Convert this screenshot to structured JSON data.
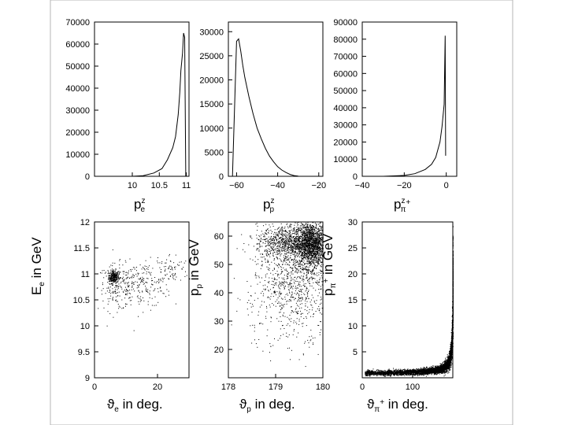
{
  "chart_data": [
    {
      "type": "line",
      "panel": "top-left",
      "xlabel": "p^z_e",
      "xlabel_main": "p",
      "xlabel_sup": "z",
      "xlabel_sub": "e",
      "ylabel": "",
      "xlim": [
        9.3,
        11.05
      ],
      "ylim": [
        0,
        70000
      ],
      "xticks": [
        10,
        10.5,
        11
      ],
      "xtick_labels": [
        "10",
        "10.5",
        "11"
      ],
      "yticks": [
        0,
        10000,
        20000,
        30000,
        40000,
        50000,
        60000,
        70000
      ],
      "ytick_labels": [
        "0",
        "10000",
        "20000",
        "30000",
        "40000",
        "50000",
        "60000",
        "70000"
      ],
      "x": [
        10.0,
        10.2,
        10.4,
        10.55,
        10.65,
        10.75,
        10.8,
        10.85,
        10.88,
        10.9,
        10.93,
        10.95,
        10.97,
        10.99
      ],
      "y": [
        0,
        300,
        1500,
        3500,
        7500,
        13000,
        18000,
        28000,
        38000,
        48000,
        56000,
        65000,
        63000,
        0
      ]
    },
    {
      "type": "line",
      "panel": "top-middle",
      "xlabel": "p^z_p",
      "xlabel_main": "p",
      "xlabel_sup": "z",
      "xlabel_sub": "p",
      "ylabel": "",
      "xlim": [
        -64,
        -18
      ],
      "ylim": [
        0,
        32000
      ],
      "xticks": [
        -60,
        -40,
        -20
      ],
      "xtick_labels": [
        "−60",
        "−40",
        "−20"
      ],
      "yticks": [
        0,
        5000,
        10000,
        15000,
        20000,
        25000,
        30000
      ],
      "ytick_labels": [
        "0",
        "5000",
        "10000",
        "15000",
        "20000",
        "25000",
        "30000"
      ],
      "x": [
        -62,
        -61,
        -60,
        -59,
        -58,
        -57,
        -56,
        -54,
        -52,
        -50,
        -48,
        -46,
        -44,
        -42,
        -40,
        -38,
        -36,
        -34,
        -32,
        -30
      ],
      "y": [
        0,
        14000,
        28000,
        28500,
        26000,
        23000,
        20500,
        16500,
        13000,
        10000,
        7800,
        5800,
        4200,
        3000,
        2000,
        1300,
        800,
        400,
        150,
        50
      ]
    },
    {
      "type": "line",
      "panel": "top-right",
      "xlabel": "p^z_π+",
      "xlabel_main": "p",
      "xlabel_sup": "z",
      "xlabel_sub": "π",
      "xlabel_subsup": "+",
      "ylabel": "",
      "xlim": [
        -40,
        5
      ],
      "ylim": [
        0,
        90000
      ],
      "xticks": [
        -40,
        -20,
        0
      ],
      "xtick_labels": [
        "−40",
        "−20",
        "0"
      ],
      "yticks": [
        0,
        10000,
        20000,
        30000,
        40000,
        50000,
        60000,
        70000,
        80000,
        90000
      ],
      "ytick_labels": [
        "0",
        "10000",
        "20000",
        "30000",
        "40000",
        "50000",
        "60000",
        "70000",
        "80000",
        "90000"
      ],
      "x": [
        -30,
        -20,
        -15,
        -10,
        -7,
        -5,
        -3,
        -2,
        -1,
        -0.5,
        -0.3
      ],
      "y": [
        0,
        500,
        1500,
        4000,
        7000,
        11000,
        20000,
        29000,
        42000,
        82000,
        12000
      ]
    },
    {
      "type": "scatter",
      "panel": "bottom-left",
      "xlabel": "θ_e in deg.",
      "xlabel_main": "ϑ",
      "xlabel_sub": "e",
      "xlabel_rest": " in deg.",
      "ylabel": "E_e in GeV",
      "ylabel_main": "E",
      "ylabel_sub": "e",
      "ylabel_rest": " in GeV",
      "xlim": [
        0,
        30
      ],
      "ylim": [
        9,
        12
      ],
      "xticks": [
        0,
        20
      ],
      "xtick_labels": [
        "0",
        "20"
      ],
      "yticks": [
        9,
        9.5,
        10,
        10.5,
        11,
        11.5,
        12
      ],
      "ytick_labels": [
        "9",
        "9.5",
        "10",
        "10.5",
        "11",
        "11.5",
        "12"
      ],
      "clusters": [
        {
          "center": [
            6,
            10.95
          ],
          "spread": [
            0.8,
            0.06
          ],
          "count": 260
        },
        {
          "center": [
            7,
            10.75
          ],
          "spread": [
            3,
            0.22
          ],
          "count": 180
        },
        {
          "center": [
            15,
            10.8
          ],
          "spread": [
            4.5,
            0.22
          ],
          "count": 200
        },
        {
          "center": [
            24,
            11.1
          ],
          "spread": [
            3,
            0.15
          ],
          "count": 80
        }
      ]
    },
    {
      "type": "scatter",
      "panel": "bottom-middle",
      "xlabel": "θ_p in deg.",
      "xlabel_main": "ϑ",
      "xlabel_sub": "p",
      "xlabel_rest": " in deg.",
      "ylabel": "p_p in GeV",
      "ylabel_main": "p",
      "ylabel_sub": "p",
      "ylabel_rest": " in GeV",
      "xlim": [
        178,
        180
      ],
      "ylim": [
        10,
        65
      ],
      "xticks": [
        178,
        179,
        180
      ],
      "xtick_labels": [
        "178",
        "179",
        "180"
      ],
      "yticks": [
        20,
        30,
        40,
        50,
        60
      ],
      "ytick_labels": [
        "20",
        "30",
        "40",
        "50",
        "60"
      ],
      "clusters": [
        {
          "center": [
            179.75,
            57
          ],
          "spread": [
            0.18,
            4
          ],
          "count": 1600
        },
        {
          "center": [
            179.3,
            58
          ],
          "spread": [
            0.35,
            3
          ],
          "count": 900
        },
        {
          "center": [
            179.5,
            45
          ],
          "spread": [
            0.4,
            9
          ],
          "count": 700
        },
        {
          "center": [
            179.1,
            40
          ],
          "spread": [
            0.5,
            10
          ],
          "count": 300
        }
      ]
    },
    {
      "type": "scatter",
      "panel": "bottom-right",
      "xlabel": "θ_π+ in deg.",
      "xlabel_main": "ϑ",
      "xlabel_sub": "π",
      "xlabel_subsup": "+",
      "xlabel_rest": " in deg.",
      "ylabel": "p_π+ in GeV",
      "ylabel_main": "p",
      "ylabel_sub": "π",
      "ylabel_subsup": "+",
      "ylabel_rest": " in GeV",
      "xlim": [
        0,
        180
      ],
      "ylim": [
        0,
        30
      ],
      "xticks": [
        0,
        100
      ],
      "xtick_labels": [
        "0",
        "100"
      ],
      "yticks": [
        5,
        10,
        15,
        20,
        25,
        30
      ],
      "ytick_labels": [
        "5",
        "10",
        "15",
        "20",
        "25",
        "30"
      ],
      "curve": "p = 0.5 + 18 / (181 - θ)^0.9"
    }
  ]
}
